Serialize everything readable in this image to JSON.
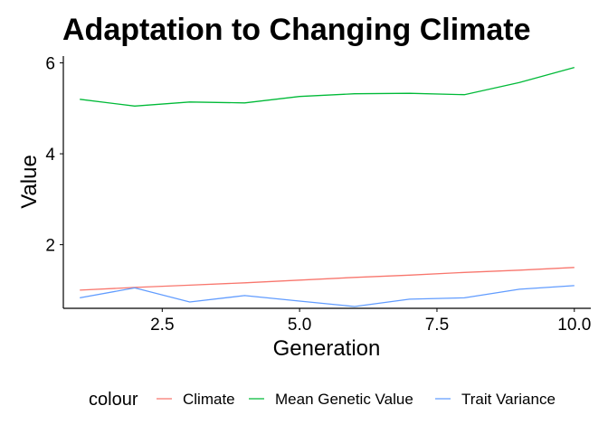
{
  "chart_data": {
    "type": "line",
    "title": "Adaptation to Changing Climate",
    "xlabel": "Generation",
    "ylabel": "Value",
    "xlim": [
      0.7,
      10.3
    ],
    "ylim": [
      0.6,
      6.15
    ],
    "x_ticks": [
      2.5,
      5.0,
      7.5,
      10.0
    ],
    "x_tick_labels": [
      "2.5",
      "5.0",
      "7.5",
      "10.0"
    ],
    "y_ticks": [
      2,
      4,
      6
    ],
    "y_tick_labels": [
      "2",
      "4",
      "6"
    ],
    "grid": false,
    "legend": {
      "title": "colour",
      "position": "bottom"
    },
    "x": [
      1,
      2,
      3,
      4,
      5,
      6,
      7,
      8,
      9,
      10
    ],
    "series": [
      {
        "name": "Climate",
        "color": "#F8766D",
        "values": [
          1.0,
          1.06,
          1.11,
          1.16,
          1.22,
          1.28,
          1.33,
          1.39,
          1.44,
          1.5
        ]
      },
      {
        "name": "Mean Genetic Value",
        "color": "#00BA38",
        "values": [
          5.2,
          5.05,
          5.14,
          5.12,
          5.26,
          5.32,
          5.33,
          5.3,
          5.57,
          5.9
        ]
      },
      {
        "name": "Trait Variance",
        "color": "#619CFF",
        "values": [
          0.83,
          1.05,
          0.74,
          0.88,
          0.76,
          0.64,
          0.8,
          0.83,
          1.02,
          1.1
        ]
      }
    ]
  }
}
